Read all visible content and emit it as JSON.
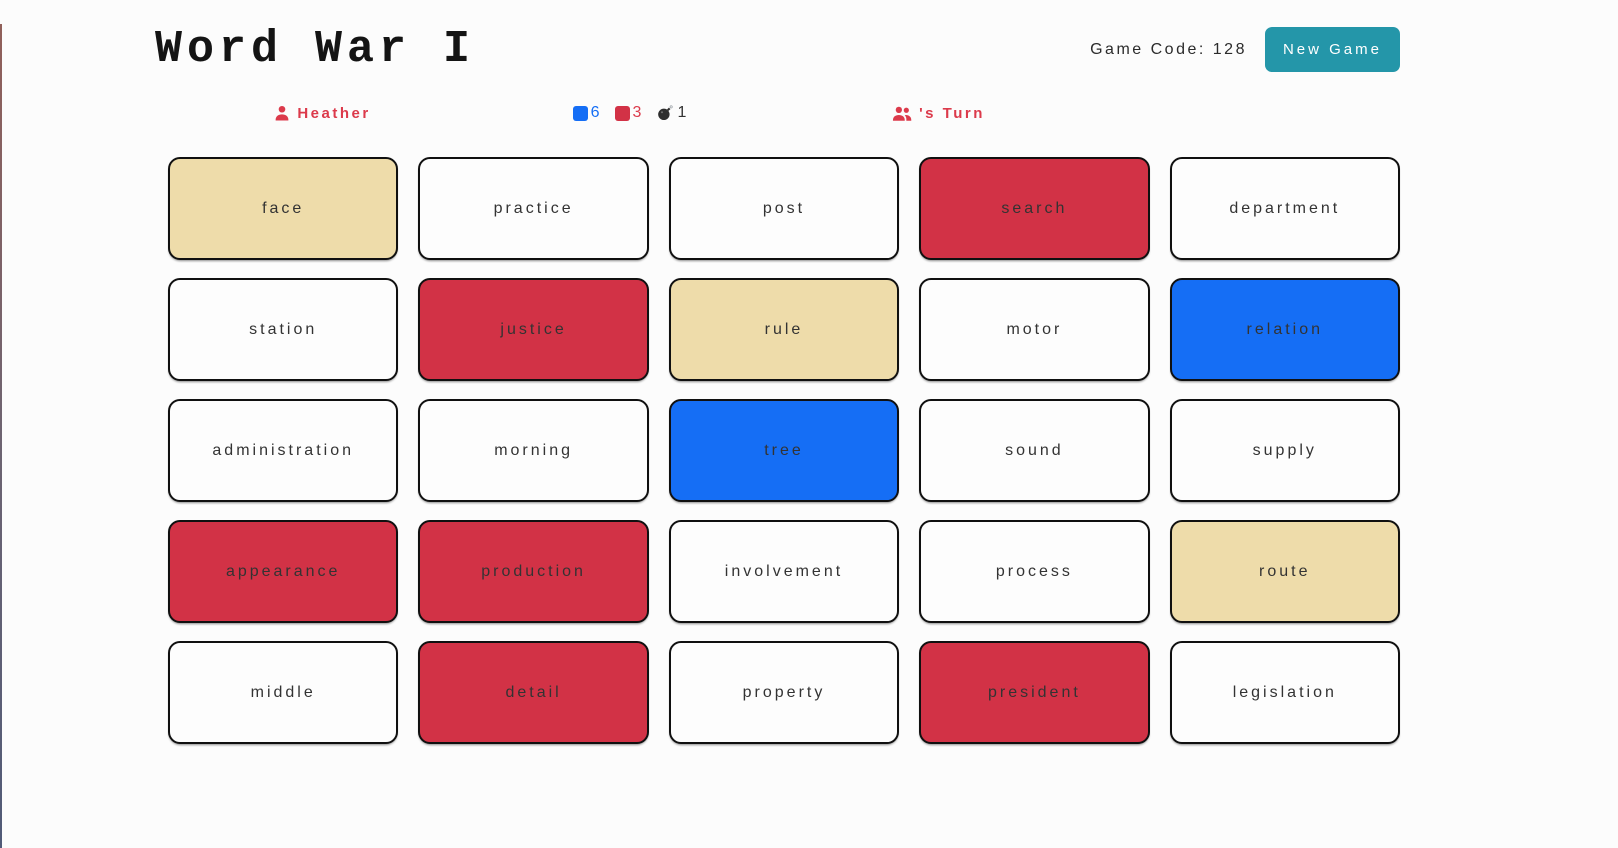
{
  "header": {
    "title": "Word War I",
    "game_code": "Game Code: 128",
    "new_game_button": "New Game"
  },
  "scoreboard": {
    "player": {
      "name": "Heather"
    },
    "stats": {
      "blue_remaining": "6",
      "red_remaining": "3",
      "bomb_count": "1"
    },
    "turn": {
      "label": "'s Turn"
    }
  },
  "colors": {
    "accent_red": "#dc3a4b",
    "card_red": "#d23246",
    "card_blue": "#156ef5",
    "card_tan": "#eedcaa",
    "card_white": "#fdfdfd",
    "button_teal": "#2496a9",
    "blue_text": "#156ef5",
    "bomb_dark": "#2e2e2e",
    "text_dark": "#333333"
  },
  "board": {
    "columns": 5,
    "rows": 5,
    "cards": [
      {
        "word": "face",
        "color": "tan"
      },
      {
        "word": "practice",
        "color": "white"
      },
      {
        "word": "post",
        "color": "white"
      },
      {
        "word": "search",
        "color": "red"
      },
      {
        "word": "department",
        "color": "white"
      },
      {
        "word": "station",
        "color": "white"
      },
      {
        "word": "justice",
        "color": "red"
      },
      {
        "word": "rule",
        "color": "tan"
      },
      {
        "word": "motor",
        "color": "white"
      },
      {
        "word": "relation",
        "color": "blue"
      },
      {
        "word": "administration",
        "color": "white"
      },
      {
        "word": "morning",
        "color": "white"
      },
      {
        "word": "tree",
        "color": "blue"
      },
      {
        "word": "sound",
        "color": "white"
      },
      {
        "word": "supply",
        "color": "white"
      },
      {
        "word": "appearance",
        "color": "red"
      },
      {
        "word": "production",
        "color": "red"
      },
      {
        "word": "involvement",
        "color": "white"
      },
      {
        "word": "process",
        "color": "white"
      },
      {
        "word": "route",
        "color": "tan"
      },
      {
        "word": "middle",
        "color": "white"
      },
      {
        "word": "detail",
        "color": "red"
      },
      {
        "word": "property",
        "color": "white"
      },
      {
        "word": "president",
        "color": "red"
      },
      {
        "word": "legislation",
        "color": "white"
      }
    ]
  },
  "icons": {
    "player": "person-icon",
    "turn": "users-icon",
    "blue_stat": "blue-square-icon",
    "red_stat": "red-square-icon",
    "bomb": "bomb-icon"
  }
}
